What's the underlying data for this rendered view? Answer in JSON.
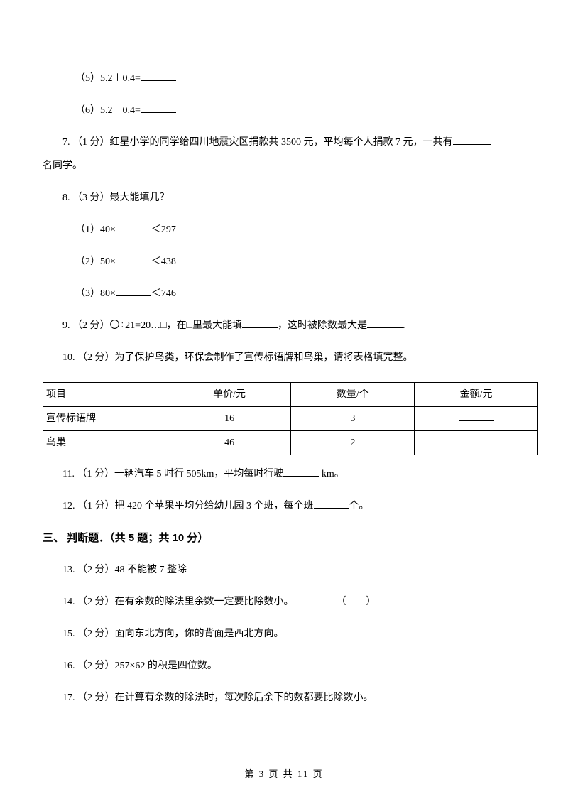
{
  "q5": {
    "label": "（5）5.2＋0.4="
  },
  "q6": {
    "label": "（6）5.2－0.4="
  },
  "q7": {
    "num": "7. ",
    "points": "（1 分）",
    "text_a": "红星小学的同学给四川地震灾区捐款共 3500 元，平均每个人捐款 7 元，一共有",
    "tail": "名同学。"
  },
  "q8": {
    "num": "8. ",
    "points": "（3 分）",
    "title": "最大能填几？",
    "sub1_a": "（1）40×",
    "sub1_b": "＜297",
    "sub2_a": "（2）50×",
    "sub2_b": "＜438",
    "sub3_a": "（3）80×",
    "sub3_b": "＜746"
  },
  "q9": {
    "num": "9. ",
    "points": "（2 分）",
    "a": "〇÷21=20…□，在□里最大能填",
    "b": "，这时被除数最大是",
    "c": "."
  },
  "q10": {
    "num": "10. ",
    "points": "（2 分）",
    "text": "为了保护鸟类，环保会制作了宣传标语牌和鸟巢，请将表格填完整。"
  },
  "table": {
    "headers": [
      "项目",
      "单价/元",
      "数量/个",
      "金额/元"
    ],
    "rows": [
      {
        "c0": "宣传标语牌",
        "c1": "16",
        "c2": "3"
      },
      {
        "c0": "鸟巢",
        "c1": "46",
        "c2": "2"
      }
    ],
    "col_widths": [
      "176px",
      "174px",
      "174px",
      "174px"
    ]
  },
  "q11": {
    "num": "11. ",
    "points": "（1 分）",
    "a": "一辆汽车 5 时行 505km，平均每时行驶",
    "b": " km。"
  },
  "q12": {
    "num": "12. ",
    "points": "（1 分）",
    "a": "把 420 个苹果平均分给幼儿园 3 个班，每个班",
    "b": "个。"
  },
  "section3": "三、 判断题．（共 5 题；共 10 分）",
  "q13": {
    "num": "13. ",
    "points": "（2 分）",
    "text": "48 不能被 7 整除"
  },
  "q14": {
    "num": "14. ",
    "points": "（2 分）",
    "text": "在有余数的除法里余数一定要比除数小。",
    "paren": "（　　）"
  },
  "q15": {
    "num": "15. ",
    "points": "（2 分）",
    "text": "面向东北方向，你的背面是西北方向。"
  },
  "q16": {
    "num": "16. ",
    "points": "（2 分）",
    "text": "257×62 的积是四位数。"
  },
  "q17": {
    "num": "17. ",
    "points": "（2 分）",
    "text": "在计算有余数的除法时，每次除后余下的数都要比除数小。"
  },
  "footer": "第 3 页 共 11 页"
}
